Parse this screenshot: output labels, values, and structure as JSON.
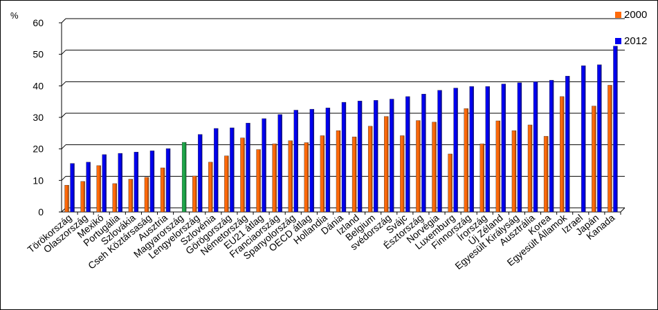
{
  "chart_data": {
    "type": "bar",
    "ylabel": "%",
    "ylim": [
      0,
      60
    ],
    "yticks": [
      "0",
      "10",
      "20",
      "30",
      "40",
      "50",
      "60"
    ],
    "grid": true,
    "legend_position": "top-right",
    "categories": [
      "Törökország",
      "Olaszország",
      "Mexikó",
      "Portugália",
      "Szlovákia",
      "Cseh Köztársaság",
      "Ausztria",
      "Magyarország",
      "Lengyelország",
      "Szlovénia",
      "Görögország",
      "Németország",
      "EU21 átlag",
      "Franciaország",
      "Spanyolország",
      "OECD átlag",
      "Hollandia",
      "Dánia",
      "Izland",
      "Belgium",
      "svédország",
      "Svájc",
      "Észtország",
      "Norvégia",
      "Luxemburg",
      "Finnország",
      "Írország",
      "Új Zéland",
      "Egyesült Királyság",
      "Ausztrália",
      "Korea",
      "Egyesült Államok",
      "Izrael",
      "Japán",
      "Kanada"
    ],
    "highlight_category": "Magyarország",
    "highlight_color": "#1ea84a",
    "series": [
      {
        "name": "2000",
        "color": "#ff6a0a",
        "values": [
          8.5,
          9.7,
          14.7,
          9.0,
          10.4,
          11.0,
          14.0,
          null,
          11.4,
          15.8,
          17.8,
          23.5,
          19.8,
          21.6,
          22.6,
          22.0,
          24.2,
          25.8,
          23.8,
          27.2,
          30.3,
          24.2,
          29.0,
          28.5,
          18.4,
          32.8,
          21.6,
          28.9,
          25.8,
          27.6,
          24.0,
          36.6,
          null,
          33.6,
          40.2
        ]
      },
      {
        "name": "2012",
        "color": "#0000f0",
        "values": [
          15.4,
          15.8,
          18.2,
          18.6,
          19.0,
          19.4,
          20.1,
          22.1,
          24.6,
          26.5,
          26.7,
          28.2,
          29.6,
          30.9,
          32.3,
          32.6,
          33.0,
          34.8,
          35.2,
          35.4,
          35.8,
          36.6,
          37.4,
          38.6,
          39.3,
          39.8,
          39.8,
          40.6,
          41.0,
          41.3,
          41.8,
          43.1,
          46.4,
          46.7,
          52.6
        ]
      }
    ]
  }
}
